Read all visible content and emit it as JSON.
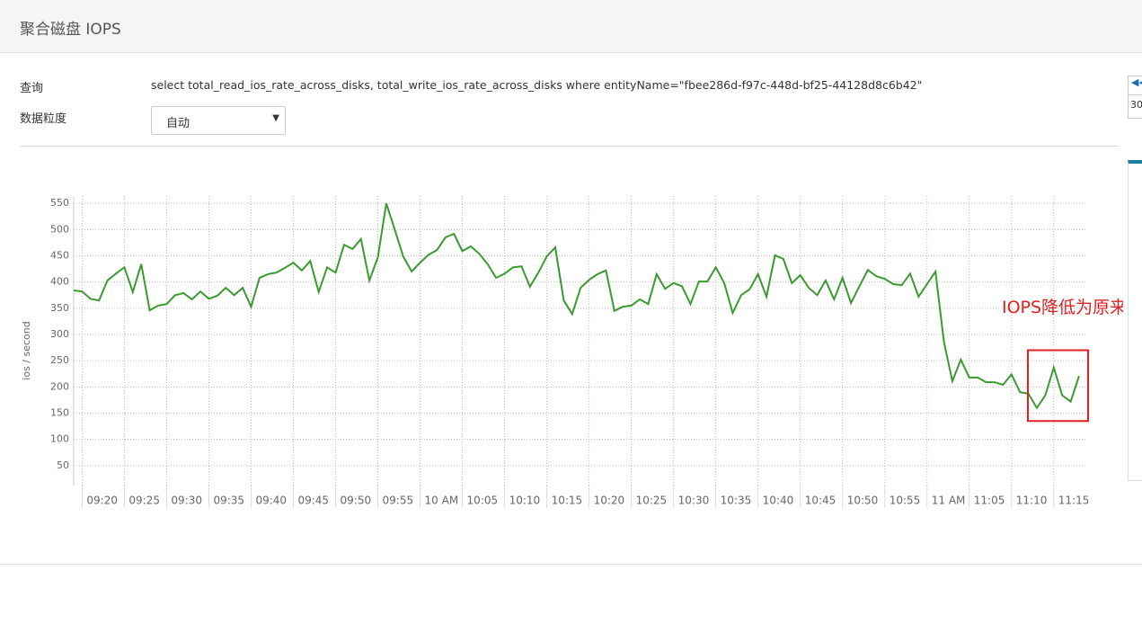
{
  "header": {
    "title": "聚合磁盘 IOPS"
  },
  "form": {
    "query_label": "查询",
    "query": "select total_read_ios_rate_across_disks, total_write_ios_rate_across_disks where entityName=\"fbee286d-f97c-448d-bf25-44128d8c6b42\"",
    "granularity_label": "数据粒度",
    "granularity": "自动"
  },
  "side_panel": {
    "value": "30"
  },
  "chart_data": {
    "type": "line",
    "ylabel": "ios / second",
    "color": "#3a9a2f",
    "x": [
      "09:19",
      "09:20",
      "09:21",
      "09:22",
      "09:23",
      "09:24",
      "09:25",
      "09:26",
      "09:27",
      "09:28",
      "09:29",
      "09:30",
      "09:31",
      "09:32",
      "09:33",
      "09:34",
      "09:35",
      "09:36",
      "09:37",
      "09:38",
      "09:39",
      "09:40",
      "09:41",
      "09:42",
      "09:43",
      "09:44",
      "09:45",
      "09:46",
      "09:47",
      "09:48",
      "09:49",
      "09:50",
      "09:51",
      "09:52",
      "09:53",
      "09:54",
      "09:55",
      "09:56",
      "09:57",
      "09:58",
      "09:59",
      "10:00",
      "10:01",
      "10:02",
      "10:03",
      "10:04",
      "10:05",
      "10:06",
      "10:07",
      "10:08",
      "10:09",
      "10:10",
      "10:11",
      "10:12",
      "10:13",
      "10:14",
      "10:15",
      "10:16",
      "10:17",
      "10:18",
      "10:19",
      "10:20",
      "10:21",
      "10:22",
      "10:23",
      "10:24",
      "10:25",
      "10:26",
      "10:27",
      "10:28",
      "10:29",
      "10:30",
      "10:31",
      "10:32",
      "10:33",
      "10:34",
      "10:35",
      "10:36",
      "10:37",
      "10:38",
      "10:39",
      "10:40",
      "10:41",
      "10:42",
      "10:43",
      "10:44",
      "10:45",
      "10:46",
      "10:47",
      "10:48",
      "10:49",
      "10:50",
      "10:51",
      "10:52",
      "10:53",
      "10:54",
      "10:55",
      "10:56",
      "10:57",
      "10:58",
      "10:59",
      "11:00",
      "11:01",
      "11:02",
      "11:03",
      "11:04",
      "11:05",
      "11:06",
      "11:07",
      "11:08",
      "11:09",
      "11:10",
      "11:11",
      "11:12",
      "11:13",
      "11:14",
      "11:15",
      "11:16",
      "11:17",
      "11:18"
    ],
    "values": [
      384,
      382,
      368,
      365,
      403,
      416,
      428,
      381,
      434,
      346,
      355,
      358,
      375,
      379,
      367,
      382,
      368,
      374,
      389,
      375,
      389,
      353,
      408,
      415,
      418,
      427,
      437,
      422,
      440,
      381,
      428,
      418,
      471,
      463,
      482,
      403,
      447,
      550,
      500,
      449,
      420,
      437,
      452,
      461,
      485,
      492,
      459,
      468,
      454,
      434,
      408,
      416,
      428,
      430,
      391,
      418,
      449,
      466,
      365,
      339,
      389,
      404,
      415,
      422,
      345,
      353,
      355,
      367,
      358,
      415,
      387,
      398,
      392,
      358,
      401,
      401,
      428,
      398,
      341,
      375,
      386,
      415,
      372,
      451,
      444,
      398,
      413,
      389,
      375,
      403,
      367,
      408,
      360,
      392,
      423,
      411,
      406,
      396,
      394,
      416,
      372,
      396,
      420,
      286,
      211,
      252,
      218,
      218,
      209,
      209,
      204,
      224,
      190,
      187,
      160,
      184,
      237,
      184,
      172,
      221
    ],
    "xlim": [
      "09:19",
      "11:18"
    ],
    "xticks": [
      "09:20",
      "09:25",
      "09:30",
      "09:35",
      "09:40",
      "09:45",
      "09:50",
      "09:55",
      {
        "value": "10:00",
        "label": "10 AM"
      },
      "10:05",
      "10:10",
      "10:15",
      "10:20",
      "10:25",
      "10:30",
      "10:35",
      "10:40",
      "10:45",
      "10:50",
      "10:55",
      {
        "value": "11:00",
        "label": "11 AM"
      },
      "11:05",
      "11:10",
      "11:15"
    ],
    "ylim": [
      12,
      564
    ],
    "yticks": [
      50,
      100,
      150,
      200,
      250,
      300,
      350,
      400,
      450,
      500,
      550
    ],
    "grid": true,
    "annotation": {
      "text": "IOPS降低为原来的一半",
      "color": "#e02020",
      "box_from": "11:13",
      "box_to": "11:18",
      "box_ylim": [
        135,
        270
      ]
    }
  }
}
